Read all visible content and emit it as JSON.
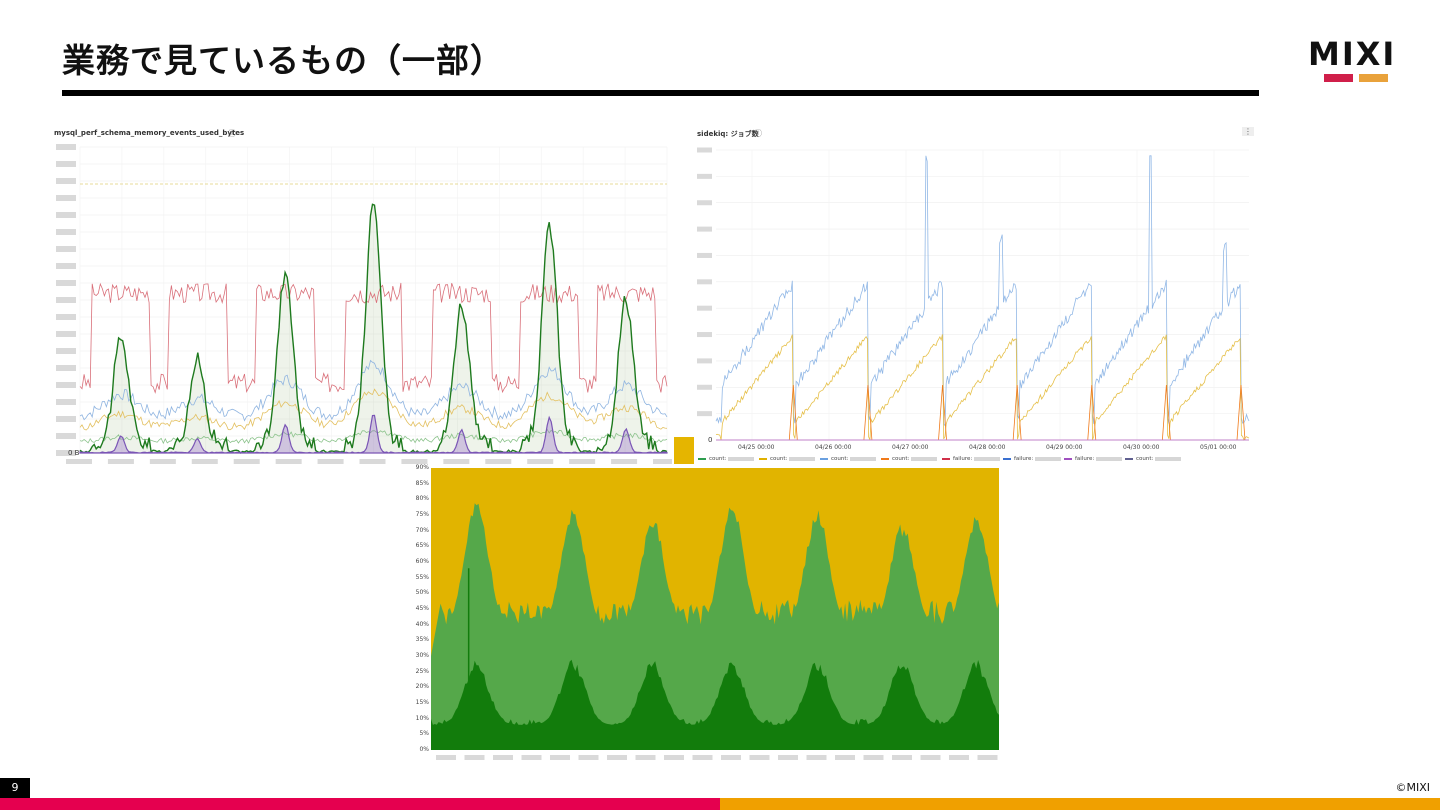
{
  "slide": {
    "title": "業務で見ているもの（一部）",
    "page_number": "9",
    "copyright": "©MIXI"
  },
  "logo": {
    "text": "MIXI",
    "colors": [
      "#d01f4a",
      "#e9a23b"
    ]
  },
  "colors": {
    "footer_left": "#e5004f",
    "footer_right": "#f0a000",
    "title_rule": "#000000"
  },
  "panels": {
    "memory": {
      "title": "mysql_perf_schema_memory_events_used_bytes",
      "zero_label": "0 B"
    },
    "sidekiq": {
      "title": "sidekiq: ジョブ数",
      "zero_label": "0",
      "x_ticks": [
        "04/25 00:00",
        "04/26 00:00",
        "04/27 00:00",
        "04/28 00:00",
        "04/29 00:00",
        "04/30 00:00",
        "05/01 00:00"
      ],
      "legend": [
        {
          "label": "count:",
          "color": "#2e9e4f"
        },
        {
          "label": "count:",
          "color": "#e0b000"
        },
        {
          "label": "count:",
          "color": "#6aa0e0"
        },
        {
          "label": "count:",
          "color": "#f07a1a"
        },
        {
          "label": "failure:",
          "color": "#d0304a"
        },
        {
          "label": "failure:",
          "color": "#3a70d0"
        },
        {
          "label": "failure:",
          "color": "#a050c0"
        },
        {
          "label": "count:",
          "color": "#606090"
        }
      ]
    },
    "cpu": {
      "y_ticks": [
        "0%",
        "5%",
        "10%",
        "15%",
        "20%",
        "25%",
        "30%",
        "35%",
        "40%",
        "45%",
        "50%",
        "55%",
        "60%",
        "65%",
        "70%",
        "75%",
        "80%",
        "85%",
        "90%"
      ]
    }
  }
}
